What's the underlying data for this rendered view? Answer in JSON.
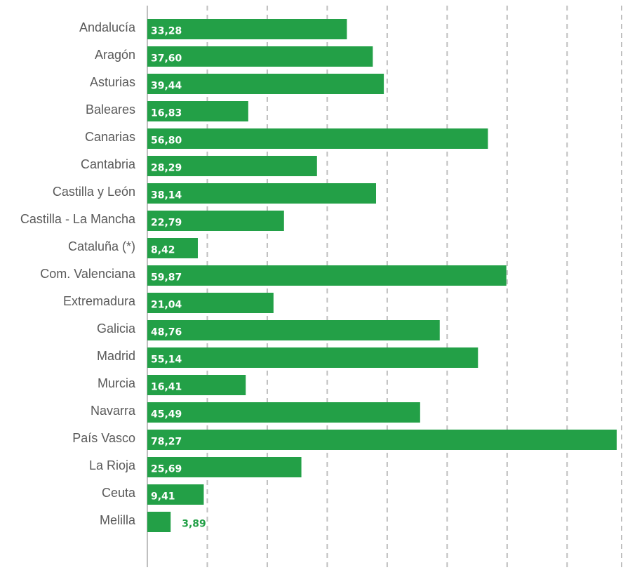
{
  "colors": {
    "bar": "#23a047",
    "label_inside": "#ffffff",
    "label_outside": "#23a047",
    "grid": "#bfbfbf",
    "category_text": "#595959"
  },
  "chart_data": {
    "type": "bar",
    "orientation": "horizontal",
    "title": "",
    "xlabel": "",
    "ylabel": "",
    "xlim": [
      0,
      80
    ],
    "grid": true,
    "legend": "none",
    "categories": [
      "Andalucía",
      "Aragón",
      "Asturias",
      "Baleares",
      "Canarias",
      "Cantabria",
      "Castilla y León",
      "Castilla - La Mancha",
      "Cataluña (*)",
      "Com. Valenciana",
      "Extremadura",
      "Galicia",
      "Madrid",
      "Murcia",
      "Navarra",
      "País Vasco",
      "La Rioja",
      "Ceuta",
      "Melilla"
    ],
    "values": [
      33.28,
      37.6,
      39.44,
      16.83,
      56.8,
      28.29,
      38.14,
      22.79,
      8.42,
      59.87,
      21.04,
      48.76,
      55.14,
      16.41,
      45.49,
      78.27,
      25.69,
      9.41,
      3.89
    ],
    "value_labels": [
      "33,28",
      "37,60",
      "39,44",
      "16,83",
      "56,80",
      "28,29",
      "38,14",
      "22,79",
      "8,42",
      "59,87",
      "21,04",
      "48,76",
      "55,14",
      "16,41",
      "45,49",
      "78,27",
      "25,69",
      "9,41",
      "3,89"
    ]
  }
}
